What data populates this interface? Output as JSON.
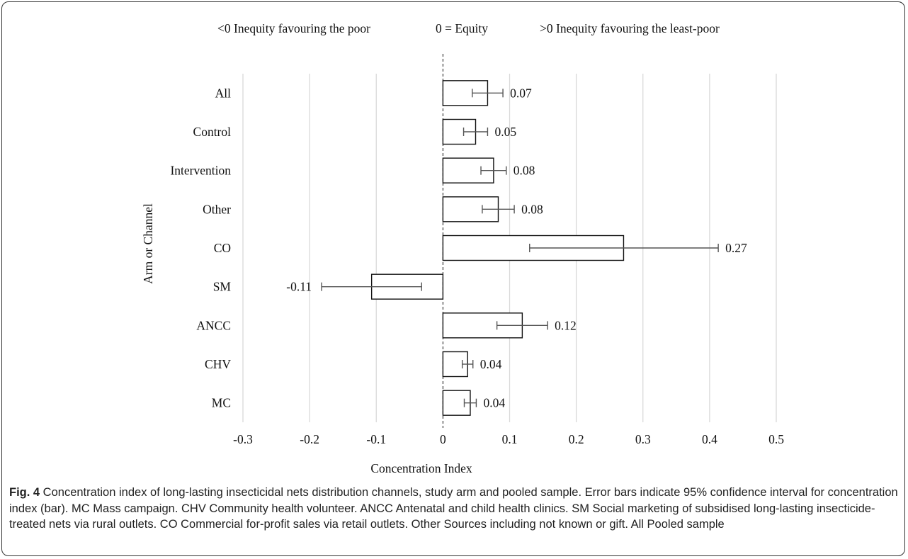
{
  "chart_data": {
    "type": "bar",
    "orientation": "horizontal",
    "categories": [
      "All",
      "Control",
      "Intervention",
      "Other",
      "CO",
      "SM",
      "ANCC",
      "CHV",
      "MC"
    ],
    "values": [
      0.067,
      0.049,
      0.076,
      0.083,
      0.271,
      -0.107,
      0.119,
      0.037,
      0.041
    ],
    "ci_low": [
      0.044,
      0.031,
      0.057,
      0.059,
      0.13,
      -0.182,
      0.081,
      0.029,
      0.032
    ],
    "ci_high": [
      0.09,
      0.067,
      0.095,
      0.107,
      0.413,
      -0.032,
      0.157,
      0.045,
      0.05
    ],
    "value_labels": [
      "0.07",
      "0.05",
      "0.08",
      "0.08",
      "0.27",
      "-0.11",
      "0.12",
      "0.04",
      "0.04"
    ],
    "xlabel": "Concentration Index",
    "ylabel": "Arm or Channel",
    "xlim": [
      -0.3,
      0.5
    ],
    "xticks": [
      -0.3,
      -0.2,
      -0.1,
      0,
      0.1,
      0.2,
      0.3,
      0.4,
      0.5
    ],
    "xtick_labels": [
      "-0.3",
      "-0.2",
      "-0.1",
      "0",
      "0.1",
      "0.2",
      "0.3",
      "0.4",
      "0.5"
    ],
    "grid": "vertical",
    "annotations": {
      "left": "<0 Inequity favouring the poor",
      "center": "0 = Equity",
      "right": ">0 Inequity favouring the least-poor"
    },
    "colors": {
      "bar_fill": "#ffffff",
      "bar_stroke": "#111111",
      "error_bar": "#555555",
      "grid": "#d9d9d9"
    }
  },
  "caption": {
    "label": "Fig. 4",
    "text": " Concentration index of long-lasting insecticidal nets distribution channels, study arm and pooled sample. Error bars indicate 95% confidence interval for concentration index (bar). MC Mass campaign. CHV Community health volunteer. ANCC Antenatal and child health clinics. SM Social marketing of subsidised long-lasting insecticide-treated nets via rural outlets. CO Commercial for-profit sales via retail outlets. Other Sources including not known or gift. All Pooled sample"
  }
}
